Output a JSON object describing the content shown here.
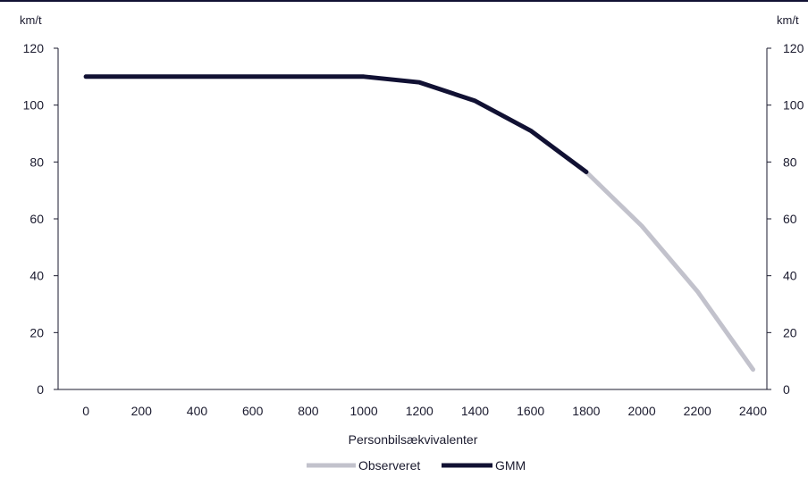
{
  "chart_data": {
    "type": "line",
    "title": "",
    "xlabel": "Personbilsækvivalenter",
    "ylabel_left": "km/t",
    "ylabel_right": "km/t",
    "xlim": [
      -100,
      2450
    ],
    "ylim": [
      0,
      120
    ],
    "x_ticks": [
      "0",
      "200",
      "400",
      "600",
      "800",
      "1000",
      "1200",
      "1400",
      "1600",
      "1800",
      "2000",
      "2200",
      "2400"
    ],
    "y_ticks": [
      "0",
      "20",
      "40",
      "60",
      "80",
      "100",
      "120"
    ],
    "grid": false,
    "legend_position": "bottom-center",
    "series": [
      {
        "name": "Observeret",
        "color": "#c2c2cc",
        "points": [
          [
            1800,
            76.5
          ],
          [
            2000,
            57.5
          ],
          [
            2200,
            34.5
          ],
          [
            2400,
            7
          ]
        ]
      },
      {
        "name": "GMM",
        "color": "#111133",
        "points": [
          [
            0,
            110
          ],
          [
            200,
            110
          ],
          [
            400,
            110
          ],
          [
            600,
            110
          ],
          [
            800,
            110
          ],
          [
            1000,
            110
          ],
          [
            1200,
            108
          ],
          [
            1400,
            101.5
          ],
          [
            1600,
            91
          ],
          [
            1800,
            76.5
          ]
        ]
      }
    ]
  }
}
